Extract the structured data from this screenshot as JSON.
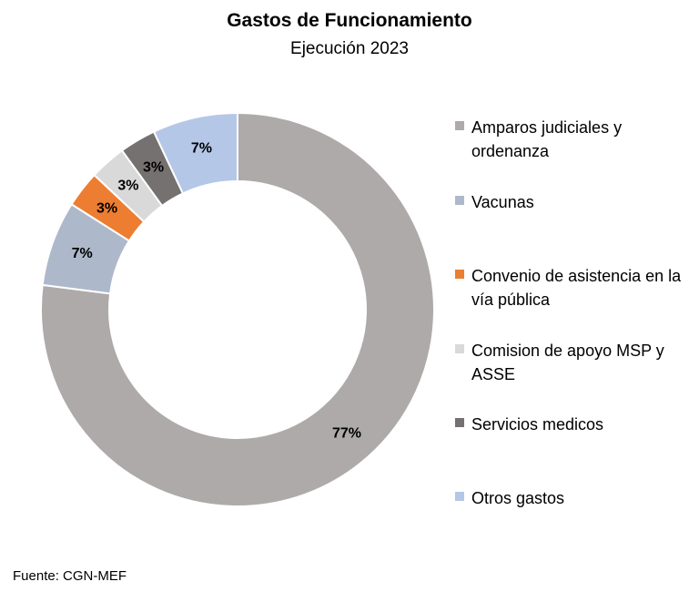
{
  "chart_data": {
    "type": "pie",
    "variant": "donut",
    "title": "Gastos de Funcionamiento",
    "subtitle": "Ejecución 2023",
    "slices": [
      {
        "label": "Amparos judiciales y ordenanza",
        "value": 77,
        "display": "77%",
        "color": "#AEAAAA"
      },
      {
        "label": "Vacunas",
        "value": 7,
        "display": "7%",
        "color": "#ADB9CA"
      },
      {
        "label": "Convenio de asistencia en la vía pública",
        "value": 3,
        "display": "3%",
        "color": "#ED7D31"
      },
      {
        "label": "Comision de apoyo MSP y ASSE",
        "value": 3,
        "display": "3%",
        "color": "#D9D9D9"
      },
      {
        "label": "Servicios medicos",
        "value": 3,
        "display": "3%",
        "color": "#767171"
      },
      {
        "label": "Otros gastos",
        "value": 7,
        "display": "7%",
        "color": "#B4C7E7"
      }
    ],
    "legend_position": "right",
    "source": "Fuente: CGN-MEF"
  }
}
